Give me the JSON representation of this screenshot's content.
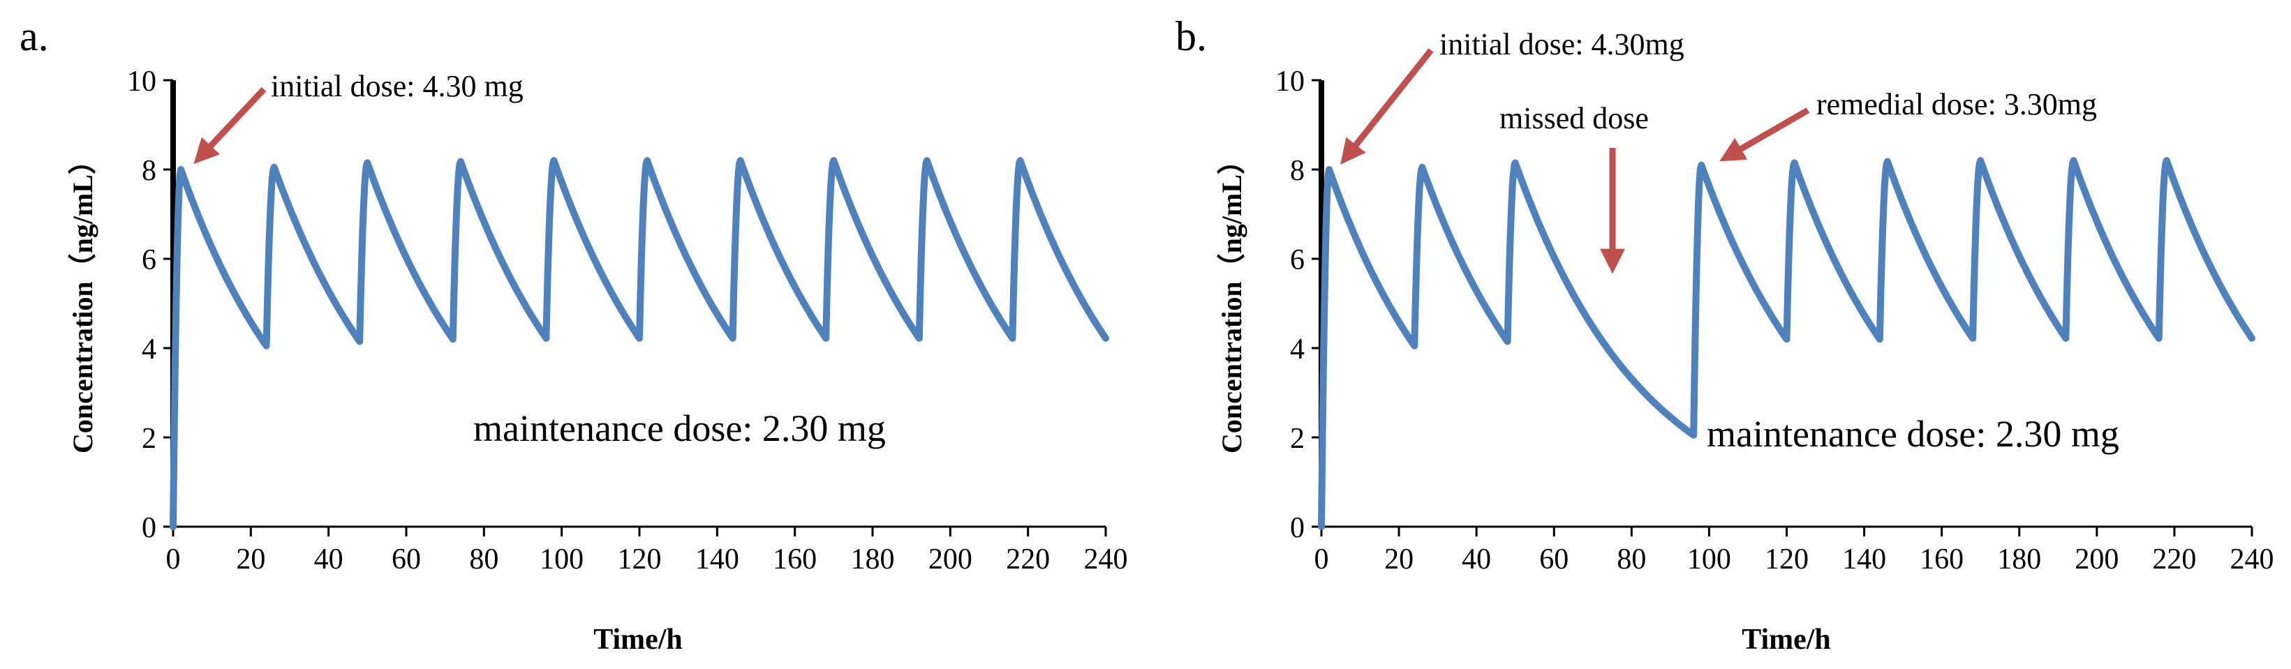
{
  "figure": {
    "panels": [
      "a.",
      "b."
    ]
  },
  "colors": {
    "series": "#4F81BD",
    "arrow": "#C0504D",
    "axis": "#000000"
  },
  "chart_data": [
    {
      "type": "line",
      "panel_label": "a.",
      "xlabel": "Time/h",
      "ylabel": "Concentration（ng/mL）",
      "xlim": [
        0,
        240
      ],
      "ylim": [
        0,
        10
      ],
      "xticks": [
        0,
        20,
        40,
        60,
        80,
        100,
        120,
        140,
        160,
        180,
        200,
        220,
        240
      ],
      "yticks": [
        0,
        2,
        4,
        6,
        8,
        10
      ],
      "grid": false,
      "series": [
        {
          "name": "Concentration",
          "x": [
            0,
            2,
            24,
            26,
            48,
            50,
            72,
            74,
            96,
            98,
            120,
            122,
            144,
            146,
            168,
            170,
            192,
            194,
            216,
            218,
            240
          ],
          "y": [
            0,
            8.0,
            4.05,
            8.05,
            4.15,
            8.15,
            4.2,
            8.18,
            4.22,
            8.2,
            4.22,
            8.2,
            4.22,
            8.2,
            4.22,
            8.2,
            4.22,
            8.2,
            4.22,
            8.2,
            4.22
          ]
        }
      ],
      "annotations": [
        {
          "text": "initial dose: 4.30 mg",
          "target": {
            "x": 2,
            "y": 8.0
          }
        },
        {
          "text": "maintenance dose: 2.30 mg"
        }
      ]
    },
    {
      "type": "line",
      "panel_label": "b.",
      "xlabel": "Time/h",
      "ylabel": "Concentration（ng/mL）",
      "xlim": [
        0,
        240
      ],
      "ylim": [
        0,
        10
      ],
      "xticks": [
        0,
        20,
        40,
        60,
        80,
        100,
        120,
        140,
        160,
        180,
        200,
        220,
        240
      ],
      "yticks": [
        0,
        2,
        4,
        6,
        8,
        10
      ],
      "grid": false,
      "series": [
        {
          "name": "Concentration",
          "x": [
            0,
            2,
            24,
            26,
            48,
            50,
            96,
            98,
            120,
            122,
            144,
            146,
            168,
            170,
            192,
            194,
            216,
            218,
            240
          ],
          "y": [
            0,
            8.0,
            4.05,
            8.05,
            4.15,
            8.15,
            2.05,
            8.1,
            4.2,
            8.15,
            4.2,
            8.18,
            4.22,
            8.2,
            4.22,
            8.2,
            4.22,
            8.2,
            4.22
          ]
        }
      ],
      "annotations": [
        {
          "text": "initial dose: 4.30mg",
          "target": {
            "x": 2,
            "y": 8.0
          }
        },
        {
          "text": "missed dose",
          "target": {
            "x": 74,
            "y": 6.0
          }
        },
        {
          "text": "remedial dose: 3.30mg",
          "target": {
            "x": 98,
            "y": 8.1
          }
        },
        {
          "text": "maintenance dose: 2.30 mg"
        }
      ]
    }
  ]
}
